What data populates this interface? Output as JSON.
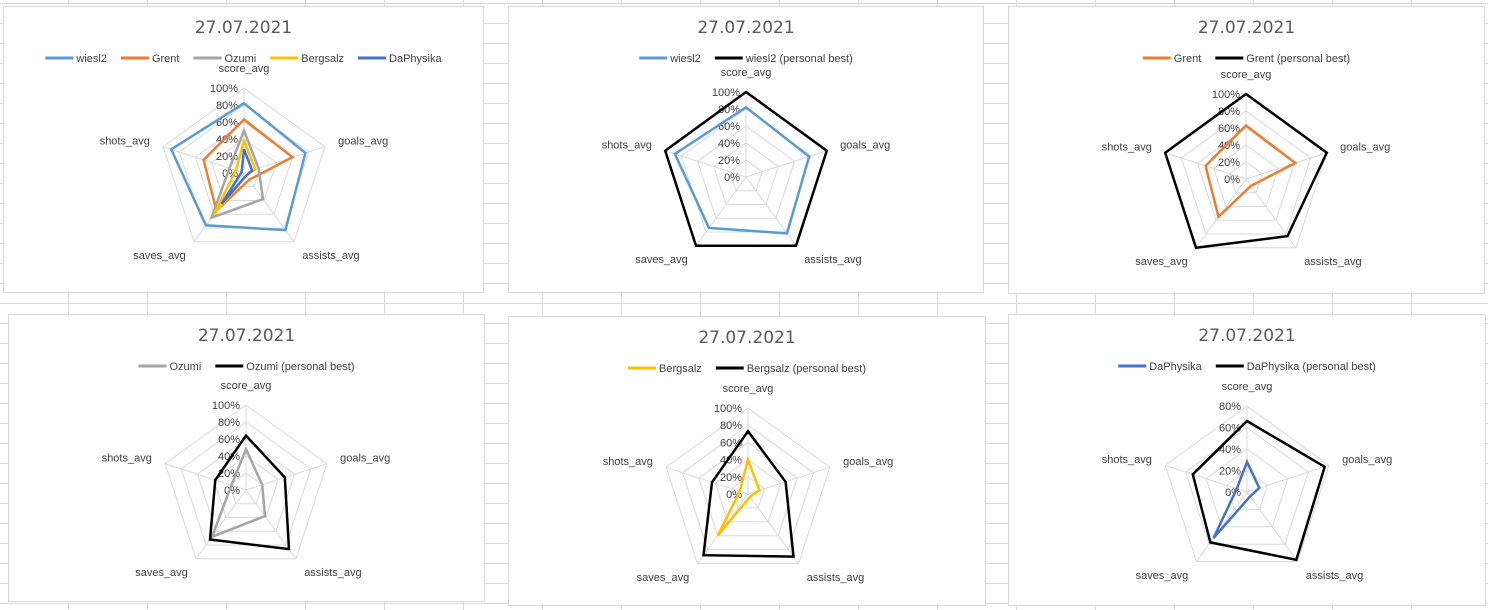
{
  "chart_data": [
    {
      "type": "radar",
      "title": "27.07.2021",
      "axes": [
        "score_avg",
        "goals_avg",
        "assists_avg",
        "saves_avg",
        "shots_avg"
      ],
      "rmax": 100,
      "ticks": [
        "0%",
        "20%",
        "40%",
        "60%",
        "80%",
        "100%"
      ],
      "legend_position": "top",
      "series": [
        {
          "name": "wiesl2",
          "color": "#5b9bd5",
          "values": [
            82,
            76,
            83,
            76,
            90
          ]
        },
        {
          "name": "Grent",
          "color": "#ed7d31",
          "values": [
            63,
            60,
            10,
            55,
            50
          ]
        },
        {
          "name": "Ozumi",
          "color": "#a5a5a5",
          "values": [
            50,
            18,
            38,
            65,
            18
          ]
        },
        {
          "name": "Bergsalz",
          "color": "#ffc000",
          "values": [
            38,
            14,
            4,
            60,
            10
          ]
        },
        {
          "name": "DaPhysika",
          "color": "#4472c4",
          "values": [
            28,
            10,
            4,
            45,
            3
          ]
        }
      ]
    },
    {
      "type": "radar",
      "title": "27.07.2021",
      "axes": [
        "score_avg",
        "goals_avg",
        "assists_avg",
        "saves_avg",
        "shots_avg"
      ],
      "rmax": 100,
      "ticks": [
        "0%",
        "20%",
        "40%",
        "60%",
        "80%",
        "100%"
      ],
      "legend_position": "top",
      "series": [
        {
          "name": "wiesl2",
          "color": "#5b9bd5",
          "values": [
            82,
            78,
            82,
            74,
            88
          ]
        },
        {
          "name": "wiesl2 (personal best)",
          "color": "#000000",
          "values": [
            100,
            100,
            100,
            100,
            100
          ]
        }
      ]
    },
    {
      "type": "radar",
      "title": "27.07.2021",
      "axes": [
        "score_avg",
        "goals_avg",
        "assists_avg",
        "saves_avg",
        "shots_avg"
      ],
      "rmax": 100,
      "ticks": [
        "0%",
        "20%",
        "40%",
        "60%",
        "80%",
        "100%"
      ],
      "legend_position": "top",
      "series": [
        {
          "name": "Grent",
          "color": "#ed7d31",
          "values": [
            63,
            61,
            10,
            55,
            50
          ]
        },
        {
          "name": "Grent (personal best)",
          "color": "#000000",
          "values": [
            100,
            100,
            83,
            100,
            100
          ]
        }
      ]
    },
    {
      "type": "radar",
      "title": "27.07.2021",
      "axes": [
        "score_avg",
        "goals_avg",
        "assists_avg",
        "saves_avg",
        "shots_avg"
      ],
      "rmax": 100,
      "ticks": [
        "0%",
        "20%",
        "40%",
        "60%",
        "80%",
        "100%"
      ],
      "legend_position": "top",
      "series": [
        {
          "name": "Ozumi",
          "color": "#a5a5a5",
          "values": [
            48,
            20,
            38,
            68,
            18
          ]
        },
        {
          "name": "Ozumi (personal best)",
          "color": "#000000",
          "values": [
            64,
            48,
            86,
            72,
            38
          ]
        }
      ]
    },
    {
      "type": "radar",
      "title": "27.07.2021",
      "axes": [
        "score_avg",
        "goals_avg",
        "assists_avg",
        "saves_avg",
        "shots_avg"
      ],
      "rmax": 100,
      "ticks": [
        "0%",
        "20%",
        "40%",
        "60%",
        "80%",
        "100%"
      ],
      "legend_position": "top",
      "series": [
        {
          "name": "Bergsalz",
          "color": "#ffc000",
          "values": [
            40,
            14,
            4,
            60,
            10
          ]
        },
        {
          "name": "Bergsalz (personal best)",
          "color": "#000000",
          "values": [
            73,
            46,
            90,
            88,
            44
          ]
        }
      ]
    },
    {
      "type": "radar",
      "title": "27.07.2021",
      "axes": [
        "score_avg",
        "goals_avg",
        "assists_avg",
        "saves_avg",
        "shots_avg"
      ],
      "rmax": 80,
      "ticks": [
        "0%",
        "20%",
        "40%",
        "60%",
        "80%"
      ],
      "legend_position": "top",
      "series": [
        {
          "name": "DaPhysika",
          "color": "#4472c4",
          "values": [
            28,
            12,
            5,
            53,
            10
          ]
        },
        {
          "name": "DaPhysika (personal best)",
          "color": "#000000",
          "values": [
            66,
            76,
            78,
            58,
            53
          ]
        }
      ]
    }
  ]
}
